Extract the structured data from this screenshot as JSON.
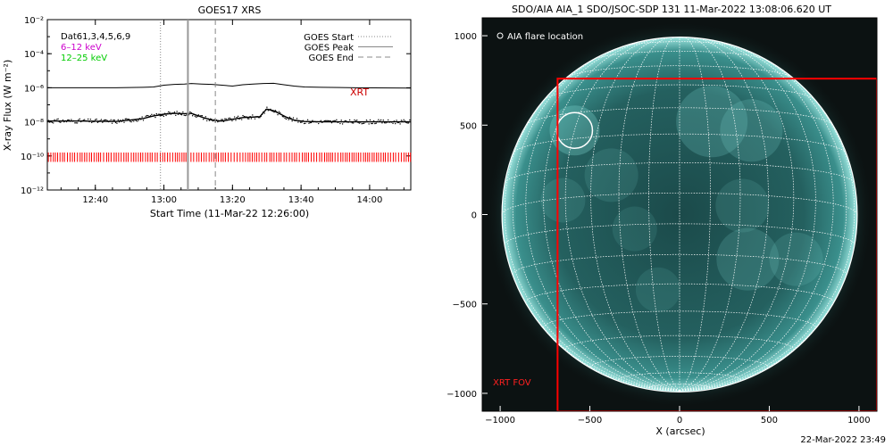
{
  "chart_data": [
    {
      "type": "line",
      "title": "GOES17 XRS",
      "xlabel": "Start Time (11-Mar-22 12:26:00)",
      "ylabel": "X-ray Flux (W m⁻²)",
      "x_range_minutes_from_start": [
        0,
        106
      ],
      "x_ticks": [
        {
          "label": "12:40",
          "minutes": 14
        },
        {
          "label": "13:00",
          "minutes": 34
        },
        {
          "label": "13:20",
          "minutes": 54
        },
        {
          "label": "13:40",
          "minutes": 74
        },
        {
          "label": "14:00",
          "minutes": 94
        }
      ],
      "ylim_log10": [
        -12,
        -2
      ],
      "y_ticks": [
        {
          "label": "10⁻²",
          "exp": -2
        },
        {
          "label": "10⁻⁴",
          "exp": -4
        },
        {
          "label": "10⁻⁶",
          "exp": -6
        },
        {
          "label": "10⁻⁸",
          "exp": -8
        },
        {
          "label": "10⁻¹⁰",
          "exp": -10
        },
        {
          "label": "10⁻¹²",
          "exp": -12
        }
      ],
      "info_lines": [
        {
          "text": "Dat61,3,4,5,6,9",
          "color": "#000000"
        },
        {
          "text": "6–12 keV",
          "color": "#cc00cc"
        },
        {
          "text": "12–25 keV",
          "color": "#00cc00"
        }
      ],
      "legend": [
        {
          "label": "GOES Start",
          "style": "dotted"
        },
        {
          "label": "GOES Peak",
          "style": "solid"
        },
        {
          "label": "GOES End",
          "style": "dashed"
        }
      ],
      "markers": {
        "goes_start_min": 33,
        "goes_peak_min": 41,
        "goes_end_min": 49
      },
      "xrt_label": "XRT",
      "series": [
        {
          "legend_label": "6–12 keV",
          "color": "#000000",
          "x": [
            0,
            10,
            20,
            26,
            28,
            31,
            34,
            37,
            40,
            42,
            45,
            48,
            51,
            54,
            57,
            60,
            63,
            66,
            69,
            72,
            75,
            80,
            90,
            106
          ],
          "log10_flux": [
            -6.0,
            -6.0,
            -6.0,
            -5.98,
            -5.97,
            -5.95,
            -5.85,
            -5.8,
            -5.78,
            -5.75,
            -5.78,
            -5.8,
            -5.85,
            -5.9,
            -5.82,
            -5.78,
            -5.75,
            -5.74,
            -5.82,
            -5.9,
            -5.95,
            -5.97,
            -6.0,
            -6.02
          ]
        },
        {
          "legend_label": "12–25 keV",
          "color": "#000000",
          "x": [
            0,
            10,
            20,
            24,
            28,
            31,
            34,
            37,
            40,
            42,
            45,
            48,
            51,
            54,
            57,
            60,
            62,
            63,
            64,
            66,
            68,
            70,
            72,
            75,
            80,
            90,
            106
          ],
          "log10_flux": [
            -7.95,
            -7.95,
            -7.98,
            -7.9,
            -7.8,
            -7.65,
            -7.55,
            -7.5,
            -7.52,
            -7.5,
            -7.72,
            -7.9,
            -7.95,
            -7.85,
            -7.75,
            -7.72,
            -7.7,
            -7.45,
            -7.25,
            -7.35,
            -7.55,
            -7.75,
            -7.9,
            -7.98,
            -8.0,
            -8.0,
            -8.0
          ]
        }
      ]
    },
    {
      "type": "image",
      "title": "SDO/AIA AIA_1 SDO/JSOC-SDP 131 11-Mar-2022 13:08:06.620 UT",
      "xlabel": "X (arcsec)",
      "ylabel": "",
      "xlim": [
        -1100,
        1100
      ],
      "ylim": [
        -1100,
        1100
      ],
      "x_ticks": [
        "−1000",
        "−500",
        "0",
        "500",
        "1000"
      ],
      "x_tick_values": [
        -1000,
        -500,
        0,
        500,
        1000
      ],
      "y_ticks": [
        "1000",
        "500",
        "0",
        "−500",
        "−1000"
      ],
      "y_tick_values": [
        1000,
        500,
        0,
        -500,
        -1000
      ],
      "solar_radius_arcsec": 990,
      "flare_location": [
        -585,
        470
      ],
      "legend_label": "AIA flare location",
      "xrt_fov_label": "XRT FOV",
      "xrt_fov": {
        "x": [
          -680,
          1100
        ],
        "y": [
          -1100,
          760
        ]
      },
      "colors": {
        "disk": "#2a6e6e",
        "background": "#0c1212",
        "grid": "#ffffff",
        "fov": "#ff0000"
      },
      "footer": "22-Mar-2022 23:49"
    }
  ]
}
